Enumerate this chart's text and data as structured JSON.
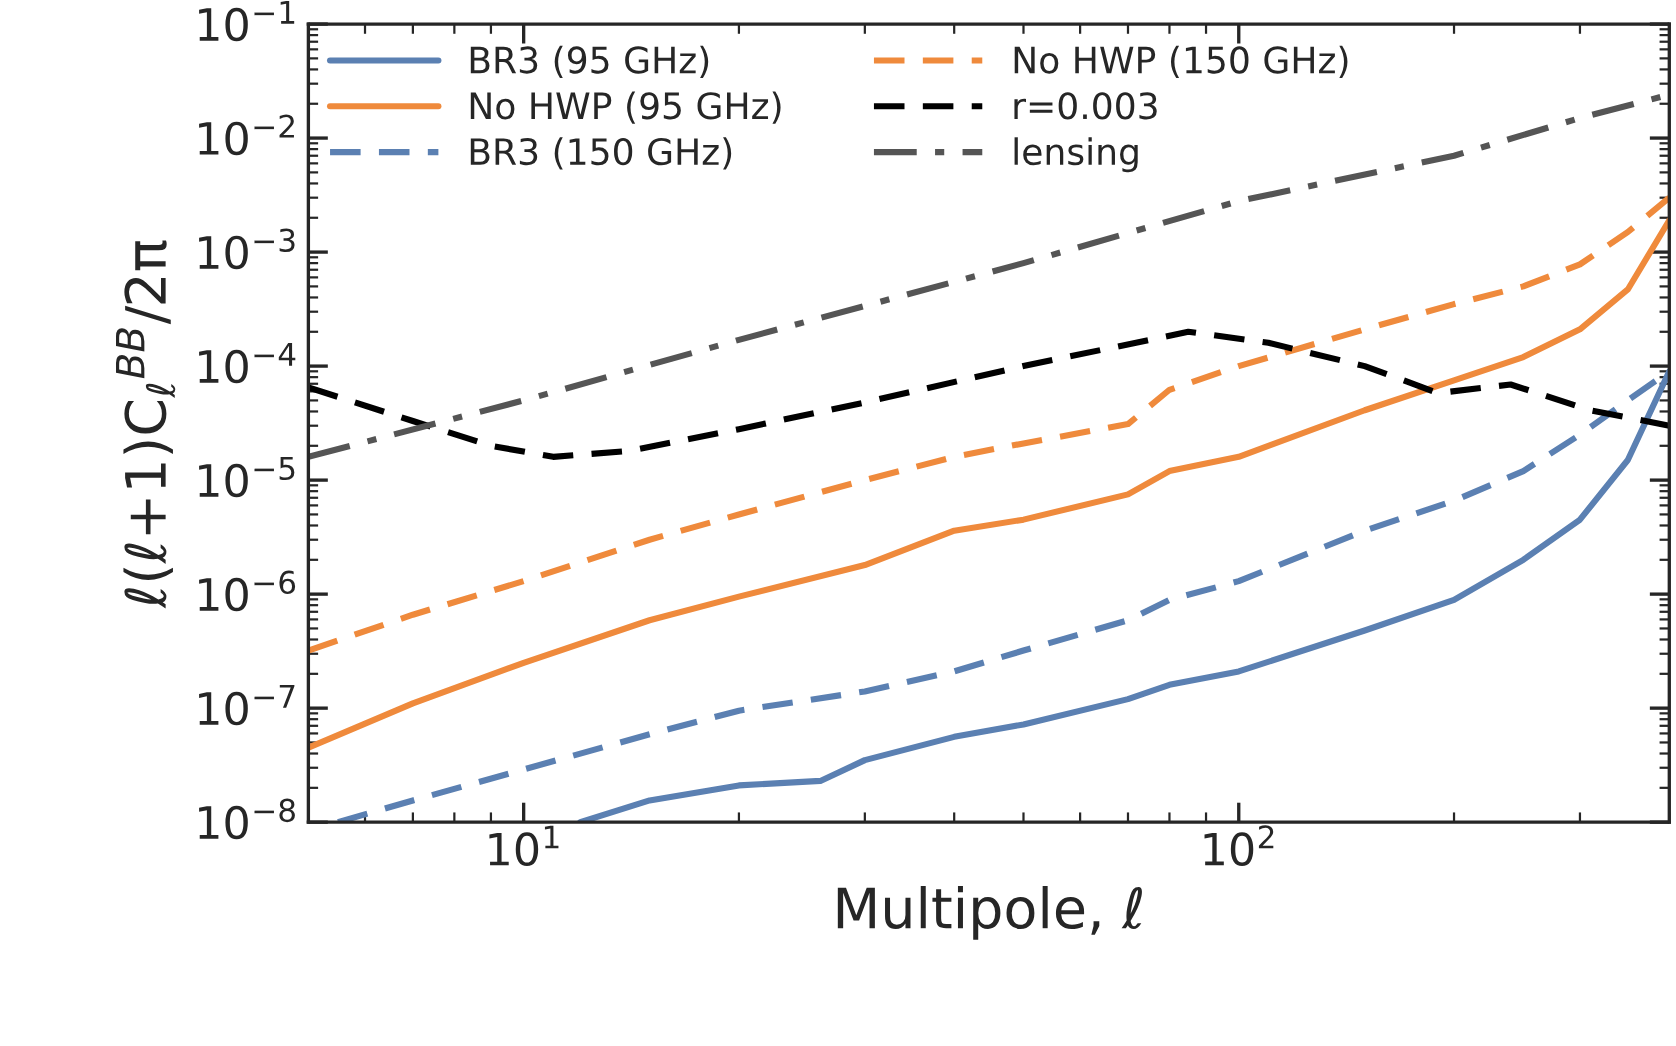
{
  "chart_data": {
    "type": "line",
    "xlabel": "Multipole, ℓ",
    "ylabel": "ℓ(ℓ+1)C$_{ℓ}$$^{BB}$/2π",
    "log": "xy",
    "grid": false,
    "legend": "top left",
    "marker": "none",
    "xlim": [
      5,
      400
    ],
    "xticks": [
      {
        "value": 10,
        "label": "10$^{1}$"
      },
      {
        "value": 100,
        "label": "10$^{2}$"
      }
    ],
    "ylim": [
      1e-08,
      0.1
    ],
    "yticks": [
      {
        "value": 1e-08,
        "label": "10$^{−8}$"
      },
      {
        "value": 1e-07,
        "label": "10$^{−7}$"
      },
      {
        "value": 1e-06,
        "label": "10$^{−6}$"
      },
      {
        "value": 1e-05,
        "label": "10$^{−5}$"
      },
      {
        "value": 0.0001,
        "label": "10$^{−4}$"
      },
      {
        "value": 0.001,
        "label": "10$^{−3}$"
      },
      {
        "value": 0.01,
        "label": "10$^{−2}$"
      },
      {
        "value": 0.1,
        "label": "10$^{−1}$"
      }
    ],
    "series": [
      {
        "name": "BR3 (95 GHz)",
        "color": "#5b80b2",
        "line_style": "solid",
        "x": [
          12,
          15,
          20,
          26,
          30,
          40,
          50,
          70,
          80,
          100,
          150,
          200,
          250,
          300,
          350,
          400
        ],
        "values": [
          1e-08,
          1.55e-08,
          2.1e-08,
          2.3e-08,
          3.5e-08,
          5.6e-08,
          7.2e-08,
          1.2e-07,
          1.6e-07,
          2.1e-07,
          4.8e-07,
          8.9e-07,
          2e-06,
          4.5e-06,
          1.5e-05,
          9e-05
        ]
      },
      {
        "name": "No HWP (95 GHz)",
        "color": "#ef8a3c",
        "line_style": "solid",
        "x": [
          5,
          7,
          10,
          15,
          20,
          30,
          40,
          50,
          70,
          80,
          100,
          150,
          200,
          250,
          300,
          350,
          400
        ],
        "values": [
          4.5e-08,
          1.1e-07,
          2.5e-07,
          5.9e-07,
          9.5e-07,
          1.8e-06,
          3.6e-06,
          4.5e-06,
          7.5e-06,
          1.2e-05,
          1.6e-05,
          4.1e-05,
          7.5e-05,
          0.00012,
          0.00021,
          0.00047,
          0.0019
        ]
      },
      {
        "name": "BR3 (150 GHz)",
        "color": "#5b80b2",
        "line_style": "dashed",
        "x": [
          5.5,
          7,
          10,
          15,
          20,
          30,
          40,
          50,
          70,
          80,
          100,
          150,
          200,
          250,
          300,
          350,
          400
        ],
        "values": [
          1e-08,
          1.55e-08,
          2.9e-08,
          5.9e-08,
          9.5e-08,
          1.4e-07,
          2.1e-07,
          3.2e-07,
          5.9e-07,
          8.9e-07,
          1.3e-06,
          3.6e-06,
          6.6e-06,
          1.2e-05,
          2.5e-05,
          5e-05,
          9e-05
        ]
      },
      {
        "name": "No HWP (150 GHz)",
        "color": "#ef8a3c",
        "line_style": "dashed",
        "x": [
          5,
          7,
          10,
          15,
          20,
          30,
          40,
          50,
          70,
          80,
          100,
          150,
          200,
          250,
          300,
          350,
          400
        ],
        "values": [
          3.2e-07,
          6.6e-07,
          1.3e-06,
          3e-06,
          5e-06,
          1e-05,
          1.6e-05,
          2.1e-05,
          3.1e-05,
          6.2e-05,
          0.0001,
          0.00021,
          0.00035,
          0.0005,
          0.00078,
          0.0015,
          0.003
        ]
      },
      {
        "name": "r=0.003",
        "color": "#000000",
        "line_style": "dashed",
        "x": [
          5,
          7,
          9,
          11,
          14,
          20,
          30,
          50,
          85,
          110,
          150,
          190,
          240,
          310,
          400
        ],
        "values": [
          6.5e-05,
          3.3e-05,
          2e-05,
          1.6e-05,
          1.8e-05,
          2.8e-05,
          4.8e-05,
          0.0001,
          0.0002,
          0.00016,
          0.0001,
          5.8e-05,
          6.9e-05,
          4.1e-05,
          3e-05
        ]
      },
      {
        "name": "lensing",
        "color": "#555555",
        "line_style": "dashdot",
        "x": [
          5,
          10,
          20,
          50,
          100,
          200,
          300,
          400
        ],
        "values": [
          1.6e-05,
          5e-05,
          0.00017,
          0.0008,
          0.0028,
          0.007,
          0.015,
          0.024
        ]
      }
    ]
  }
}
